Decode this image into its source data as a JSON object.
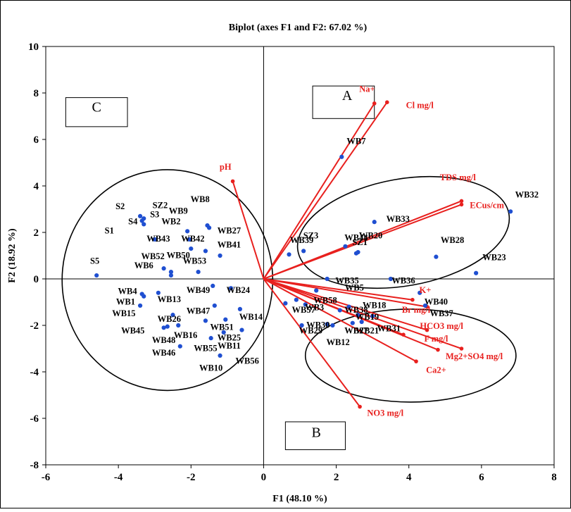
{
  "chart_data": {
    "type": "scatter",
    "title": "Biplot (axes F1 and F2: 67.02 %)",
    "xlabel": "F1 (48.10 %)",
    "ylabel": "F2 (18.92 %)",
    "xlim": [
      -6,
      8
    ],
    "ylim": [
      -8,
      10
    ],
    "xticks": [
      -6,
      -4,
      -2,
      0,
      2,
      4,
      6,
      8
    ],
    "yticks": [
      -8,
      -6,
      -4,
      -2,
      0,
      2,
      4,
      6,
      8,
      10
    ],
    "grid": false,
    "legend": "none",
    "colors": {
      "observations": "#1f4fd1",
      "variables": "#e8201e",
      "axis": "#000000"
    },
    "variables": [
      {
        "name": "Na+",
        "x": 3.05,
        "y": 7.55
      },
      {
        "name": "Cl mg/l",
        "x": 3.4,
        "y": 7.6
      },
      {
        "name": "pH",
        "x": -0.85,
        "y": 4.2
      },
      {
        "name": "TDS mg/l",
        "x": 5.45,
        "y": 3.35
      },
      {
        "name": "ECus/cm",
        "x": 5.45,
        "y": 3.2
      },
      {
        "name": "K+",
        "x": 4.1,
        "y": -0.9
      },
      {
        "name": "Br mg/l",
        "x": 4.5,
        "y": -1.2
      },
      {
        "name": "HCO3 mg/l",
        "x": 4.5,
        "y": -2.2
      },
      {
        "name": "F mg/l",
        "x": 3.85,
        "y": -2.4
      },
      {
        "name": "Mg2+",
        "x": 4.8,
        "y": -3.05
      },
      {
        "name": "SO4 mg/l",
        "x": 5.45,
        "y": -3.0
      },
      {
        "name": "Ca2+",
        "x": 4.2,
        "y": -3.55
      },
      {
        "name": "NO3 mg/l",
        "x": 2.65,
        "y": -5.5
      }
    ],
    "observations": [
      {
        "name": "WB32",
        "x": 6.8,
        "y": 2.9
      },
      {
        "name": "WB7",
        "x": 2.15,
        "y": 5.25
      },
      {
        "name": "WB33",
        "x": 3.05,
        "y": 2.45
      },
      {
        "name": "WB44",
        "x": 2.25,
        "y": 1.4
      },
      {
        "name": "WB20",
        "x": 2.6,
        "y": 1.15
      },
      {
        "name": "SZ1",
        "x": 2.55,
        "y": 1.1
      },
      {
        "name": "SZ3",
        "x": 1.1,
        "y": 1.2
      },
      {
        "name": "WB39",
        "x": 0.7,
        "y": 1.05
      },
      {
        "name": "WB28",
        "x": 4.75,
        "y": 0.95
      },
      {
        "name": "WB23",
        "x": 5.85,
        "y": 0.25
      },
      {
        "name": "WB35",
        "x": 1.75,
        "y": 0.0
      },
      {
        "name": "WB36",
        "x": 3.5,
        "y": 0.0
      },
      {
        "name": "WB5",
        "x": 1.45,
        "y": -0.5
      },
      {
        "name": "WB40",
        "x": 4.45,
        "y": -1.15
      },
      {
        "name": "WB37",
        "x": 4.3,
        "y": -0.6
      },
      {
        "name": "WB58",
        "x": 1.15,
        "y": -1.1
      },
      {
        "name": "WB18",
        "x": 2.35,
        "y": -1.2
      },
      {
        "name": "WB38",
        "x": 2.1,
        "y": -1.35
      },
      {
        "name": "WB19",
        "x": 2.6,
        "y": -1.55
      },
      {
        "name": "WB57",
        "x": 0.6,
        "y": -1.05
      },
      {
        "name": "WB3",
        "x": 0.9,
        "y": -0.9
      },
      {
        "name": "WB30",
        "x": 1.75,
        "y": -1.95
      },
      {
        "name": "WB29",
        "x": 1.05,
        "y": -2.0
      },
      {
        "name": "WB27b",
        "x": 2.45,
        "y": -1.9
      },
      {
        "name": "WB21",
        "x": 2.7,
        "y": -1.85
      },
      {
        "name": "WB31",
        "x": 3.0,
        "y": -1.6
      },
      {
        "name": "WB12",
        "x": 1.9,
        "y": -2.0
      },
      {
        "name": "S2",
        "x": -3.4,
        "y": 2.7
      },
      {
        "name": "SZ2",
        "x": -3.3,
        "y": 2.6
      },
      {
        "name": "S3",
        "x": -3.35,
        "y": 2.5
      },
      {
        "name": "S4",
        "x": -3.3,
        "y": 2.35
      },
      {
        "name": "S1",
        "x": -3.0,
        "y": 1.7
      },
      {
        "name": "WB8",
        "x": -1.55,
        "y": 2.3
      },
      {
        "name": "WB9",
        "x": -2.1,
        "y": 2.05
      },
      {
        "name": "WB2",
        "x": -2.05,
        "y": 1.7
      },
      {
        "name": "WB27",
        "x": -1.5,
        "y": 2.2
      },
      {
        "name": "WB43",
        "x": -2.0,
        "y": 1.3
      },
      {
        "name": "WB42",
        "x": -1.6,
        "y": 1.2
      },
      {
        "name": "WB41",
        "x": -1.2,
        "y": 1.0
      },
      {
        "name": "WB52",
        "x": -2.75,
        "y": 0.45
      },
      {
        "name": "WB50",
        "x": -2.55,
        "y": 0.3
      },
      {
        "name": "WB6",
        "x": -2.55,
        "y": 0.15
      },
      {
        "name": "WB53",
        "x": -1.8,
        "y": 0.3
      },
      {
        "name": "S5",
        "x": -4.6,
        "y": 0.15
      },
      {
        "name": "WB4",
        "x": -3.35,
        "y": -0.65
      },
      {
        "name": "WB1",
        "x": -3.3,
        "y": -0.75
      },
      {
        "name": "WB13",
        "x": -2.9,
        "y": -0.6
      },
      {
        "name": "WB49",
        "x": -1.4,
        "y": -0.3
      },
      {
        "name": "WB24",
        "x": -0.9,
        "y": -0.4
      },
      {
        "name": "WB15",
        "x": -3.4,
        "y": -1.15
      },
      {
        "name": "WB26",
        "x": -2.5,
        "y": -1.55
      },
      {
        "name": "WB47",
        "x": -1.35,
        "y": -1.15
      },
      {
        "name": "WB14",
        "x": -0.65,
        "y": -1.3
      },
      {
        "name": "WB45",
        "x": -2.65,
        "y": -2.05
      },
      {
        "name": "WB16",
        "x": -2.35,
        "y": -2.0
      },
      {
        "name": "WB51",
        "x": -1.6,
        "y": -1.8
      },
      {
        "name": "WB48",
        "x": -2.75,
        "y": -2.1
      },
      {
        "name": "WB25",
        "x": -1.05,
        "y": -1.75
      },
      {
        "name": "WB55",
        "x": -1.45,
        "y": -2.55
      },
      {
        "name": "WB11",
        "x": -1.1,
        "y": -2.3
      },
      {
        "name": "WB46",
        "x": -2.3,
        "y": -2.9
      },
      {
        "name": "WB56",
        "x": -0.6,
        "y": -2.2
      },
      {
        "name": "WB10",
        "x": -1.2,
        "y": -3.3
      }
    ],
    "observation_labels": [
      {
        "text": "WB32",
        "x": 7.25,
        "y": 3.5
      },
      {
        "text": "WB7",
        "x": 2.55,
        "y": 5.8
      },
      {
        "text": "WB33",
        "x": 3.7,
        "y": 2.45
      },
      {
        "text": "WB44",
        "x": 2.55,
        "y": 1.65
      },
      {
        "text": "WB20",
        "x": 2.95,
        "y": 1.75
      },
      {
        "text": "SZ1",
        "x": 2.65,
        "y": 1.45
      },
      {
        "text": "SZ3",
        "x": 1.3,
        "y": 1.75
      },
      {
        "text": "WB39",
        "x": 1.05,
        "y": 1.55
      },
      {
        "text": "WB28",
        "x": 5.2,
        "y": 1.55
      },
      {
        "text": "WB23",
        "x": 6.35,
        "y": 0.8
      },
      {
        "text": "WB35",
        "x": 2.3,
        "y": -0.2
      },
      {
        "text": "WB36",
        "x": 3.85,
        "y": -0.2
      },
      {
        "text": "WB5",
        "x": 2.5,
        "y": -0.5
      },
      {
        "text": "WB40",
        "x": 4.75,
        "y": -1.1
      },
      {
        "text": "WB37",
        "x": 4.9,
        "y": -1.6
      },
      {
        "text": "WB58",
        "x": 1.7,
        "y": -1.05
      },
      {
        "text": "WB18",
        "x": 3.05,
        "y": -1.25
      },
      {
        "text": "WB38",
        "x": 2.55,
        "y": -1.45
      },
      {
        "text": "WB19",
        "x": 2.85,
        "y": -1.75
      },
      {
        "text": "WB57",
        "x": 1.1,
        "y": -1.45
      },
      {
        "text": "WB3",
        "x": 1.4,
        "y": -1.35
      },
      {
        "text": "WB30",
        "x": 1.5,
        "y": -2.1
      },
      {
        "text": "WB29",
        "x": 1.3,
        "y": -2.35
      },
      {
        "text": "WB27",
        "x": 2.55,
        "y": -2.35
      },
      {
        "text": "WB21",
        "x": 2.85,
        "y": -2.35
      },
      {
        "text": "WB31",
        "x": 3.45,
        "y": -2.25
      },
      {
        "text": "WB12",
        "x": 2.05,
        "y": -2.85
      },
      {
        "text": "S2",
        "x": -3.95,
        "y": 3.0
      },
      {
        "text": "SZ2",
        "x": -2.85,
        "y": 3.05
      },
      {
        "text": "S3",
        "x": -3.0,
        "y": 2.65
      },
      {
        "text": "S4",
        "x": -3.6,
        "y": 2.35
      },
      {
        "text": "S1",
        "x": -4.25,
        "y": 1.95
      },
      {
        "text": "WB8",
        "x": -1.75,
        "y": 3.3
      },
      {
        "text": "WB9",
        "x": -2.35,
        "y": 2.8
      },
      {
        "text": "WB2",
        "x": -2.55,
        "y": 2.35
      },
      {
        "text": "WB27",
        "x": -0.95,
        "y": 1.95
      },
      {
        "text": "WB43",
        "x": -2.9,
        "y": 1.6
      },
      {
        "text": "WB42",
        "x": -1.95,
        "y": 1.6
      },
      {
        "text": "WB41",
        "x": -0.95,
        "y": 1.35
      },
      {
        "text": "WB52",
        "x": -3.05,
        "y": 0.85
      },
      {
        "text": "WB50",
        "x": -2.35,
        "y": 0.9
      },
      {
        "text": "WB6",
        "x": -3.3,
        "y": 0.45
      },
      {
        "text": "WB53",
        "x": -1.9,
        "y": 0.65
      },
      {
        "text": "S5",
        "x": -4.65,
        "y": 0.65
      },
      {
        "text": "WB4",
        "x": -3.75,
        "y": -0.65
      },
      {
        "text": "WB1",
        "x": -3.8,
        "y": -1.1
      },
      {
        "text": "WB13",
        "x": -2.6,
        "y": -1.0
      },
      {
        "text": "WB49",
        "x": -1.8,
        "y": -0.6
      },
      {
        "text": "WB24",
        "x": -0.7,
        "y": -0.6
      },
      {
        "text": "WB15",
        "x": -3.85,
        "y": -1.6
      },
      {
        "text": "WB26",
        "x": -2.6,
        "y": -1.85
      },
      {
        "text": "WB47",
        "x": -1.8,
        "y": -1.5
      },
      {
        "text": "WB14",
        "x": -0.35,
        "y": -1.75
      },
      {
        "text": "WB45",
        "x": -3.6,
        "y": -2.35
      },
      {
        "text": "WB16",
        "x": -2.15,
        "y": -2.55
      },
      {
        "text": "WB51",
        "x": -1.15,
        "y": -2.2
      },
      {
        "text": "WB48",
        "x": -2.75,
        "y": -2.75
      },
      {
        "text": "WB25",
        "x": -0.95,
        "y": -2.65
      },
      {
        "text": "WB55",
        "x": -1.6,
        "y": -3.1
      },
      {
        "text": "WB11",
        "x": -0.95,
        "y": -3.0
      },
      {
        "text": "WB46",
        "x": -2.75,
        "y": -3.3
      },
      {
        "text": "WB56",
        "x": -0.45,
        "y": -3.65
      },
      {
        "text": "WB10",
        "x": -1.45,
        "y": -3.95
      }
    ],
    "variable_labels": [
      {
        "text": "Na+",
        "x": 2.85,
        "y": 8.05
      },
      {
        "text": "Cl mg/l",
        "x": 4.3,
        "y": 7.35
      },
      {
        "text": "pH",
        "x": -1.05,
        "y": 4.7
      },
      {
        "text": "TDS mg/l",
        "x": 5.35,
        "y": 4.25
      },
      {
        "text": "ECus/cm",
        "x": 6.15,
        "y": 3.05
      },
      {
        "text": "K+",
        "x": 4.45,
        "y": -0.6
      },
      {
        "text": "Br mg/l",
        "x": 4.2,
        "y": -1.45
      },
      {
        "text": "HCO3 mg/l",
        "x": 4.9,
        "y": -2.15
      },
      {
        "text": "F mg/l",
        "x": 4.75,
        "y": -2.7
      },
      {
        "text": "Mg2+SO4 mg/l",
        "x": 5.8,
        "y": -3.45
      },
      {
        "text": "Ca2+",
        "x": 4.75,
        "y": -4.05
      },
      {
        "text": "NO3 mg/l",
        "x": 3.35,
        "y": -5.9
      }
    ],
    "annotations": [
      {
        "text": "A",
        "x": 2.3,
        "y": 7.7
      },
      {
        "text": "B",
        "x": 1.45,
        "y": -6.8
      },
      {
        "text": "C",
        "x": -4.6,
        "y": 7.2
      }
    ],
    "annotation_boxes": [
      {
        "text": "A",
        "x0": 1.35,
        "x1": 3.05,
        "y0": 8.3,
        "y1": 6.9
      },
      {
        "text": "B",
        "x0": 0.6,
        "x1": 2.25,
        "y0": -6.15,
        "y1": -7.35
      },
      {
        "text": "C",
        "x0": -5.45,
        "x1": -3.75,
        "y0": 7.8,
        "y1": 6.55
      }
    ],
    "ellipses": [
      {
        "cx": -2.65,
        "cy": -0.05,
        "rx": 2.9,
        "ry": 4.75
      },
      {
        "cx": 3.85,
        "cy": 2.0,
        "rx": 2.95,
        "ry": 2.3,
        "rotate": -10
      },
      {
        "cx": 4.05,
        "cy": -3.3,
        "rx": 2.9,
        "ry": 2.0
      }
    ]
  }
}
